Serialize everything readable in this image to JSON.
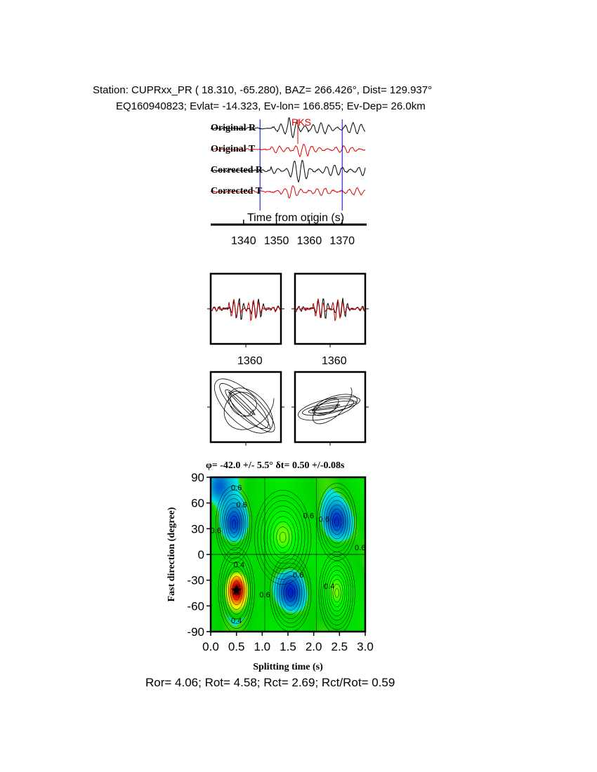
{
  "header": {
    "line1": "Station: CUPRxx_PR (  18.310,  -65.280), BAZ=  266.426°, Dist=  129.937°",
    "line2": "EQ160940823; Evlat= -14.323, Ev-lon= 166.855; Ev-Dep= 26.0km"
  },
  "traces": {
    "labels": [
      "Original R",
      "Original T",
      "Corrected R",
      "Corrected T"
    ],
    "phase_label": "PKS",
    "xlabel": "Time from origin (s)",
    "xticks": [
      "1340",
      "1350",
      "1360",
      "1370"
    ],
    "xlim": [
      1330,
      1377
    ],
    "window_markers": [
      1345,
      1370
    ],
    "colors": {
      "R": "#000000",
      "T": "#e00000",
      "marker": "#0000cc",
      "phase": "#e00000"
    }
  },
  "particle_panels": {
    "waveform_ticks": [
      "1360",
      "1360"
    ]
  },
  "grid": {
    "title": {
      "phi_symbol": "φ",
      "phi_text": "= -42.0 +/- 5.5° ",
      "dt_symbol": "δt",
      "dt_text": "= 0.50 +/-0.08s"
    },
    "ylabel": "Fast direction (degree)",
    "xlabel": "Splitting time (s)",
    "yticks": [
      "90",
      "60",
      "30",
      "0",
      "-30",
      "-60",
      "-90"
    ],
    "xticks": [
      "0.0",
      "0.5",
      "1.0",
      "1.5",
      "2.0",
      "2.5",
      "3.0"
    ]
  },
  "footer": {
    "stats": "Ror= 4.06; Rot= 4.58; Rct= 2.69; Rct/Rot= 0.59"
  },
  "chart_data": {
    "type": "heatmap",
    "title": "φ= -42.0 +/- 5.5° δt= 0.50 +/-0.08s",
    "xlabel": "Splitting time (s)",
    "ylabel": "Fast direction (degree)",
    "xlim": [
      0,
      3
    ],
    "ylim": [
      -90,
      90
    ],
    "best_fit": {
      "dt": 0.5,
      "phi": -42.0,
      "dt_err": 0.08,
      "phi_err": 5.5
    },
    "contour_labels": [
      {
        "x": 0.5,
        "y": 75,
        "text": "0.6"
      },
      {
        "x": 1.9,
        "y": 42,
        "text": "0.6"
      },
      {
        "x": 0.6,
        "y": 55,
        "text": "0.6"
      },
      {
        "x": 2.2,
        "y": 38,
        "text": "0.6"
      },
      {
        "x": 0.1,
        "y": 25,
        "text": "0.6"
      },
      {
        "x": 0.55,
        "y": -15,
        "text": "0.4"
      },
      {
        "x": 1.7,
        "y": -27,
        "text": "0.6"
      },
      {
        "x": 1.05,
        "y": -50,
        "text": "0.6"
      },
      {
        "x": 2.3,
        "y": -40,
        "text": "0.4"
      },
      {
        "x": 0.5,
        "y": -80,
        "text": "0.4"
      },
      {
        "x": 2.9,
        "y": 5,
        "text": "0.6"
      }
    ]
  }
}
